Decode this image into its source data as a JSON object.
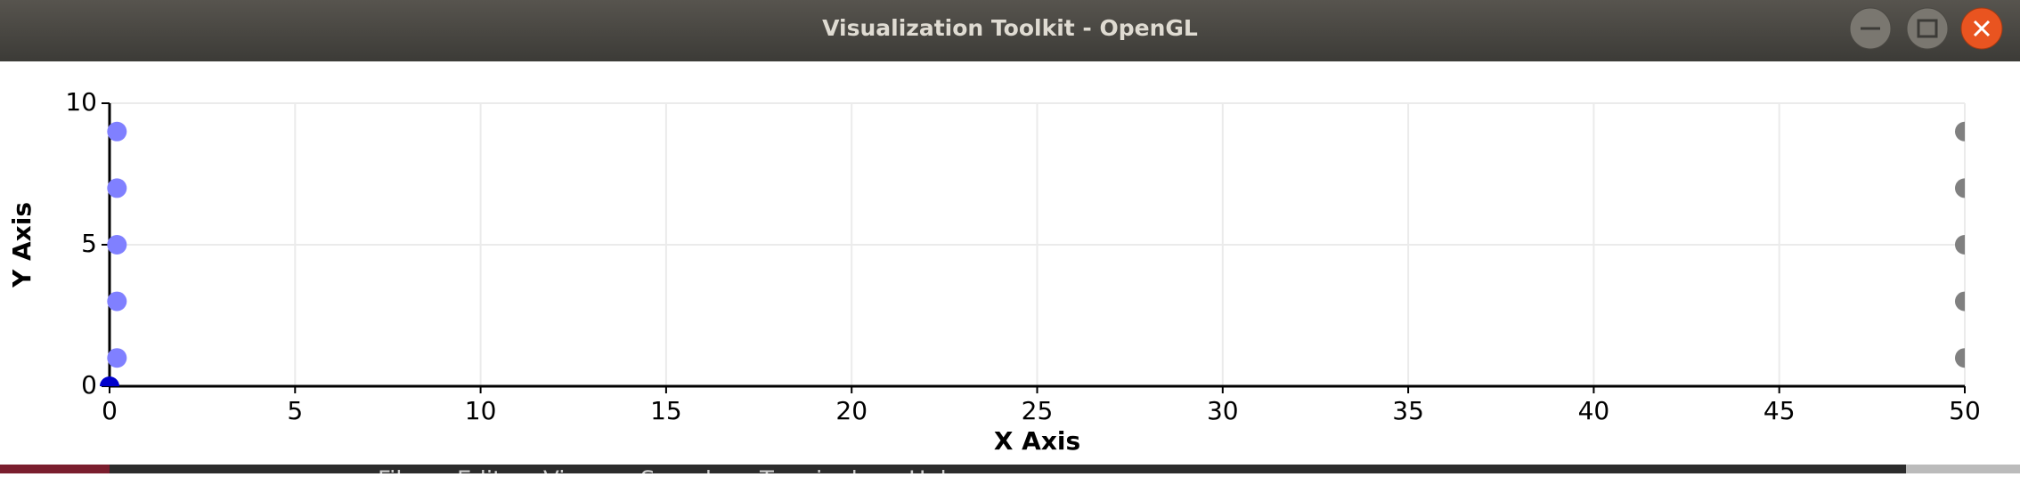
{
  "window": {
    "title": "Visualization Toolkit - OpenGL"
  },
  "chart_data": {
    "type": "scatter",
    "xlabel": "X Axis",
    "ylabel": "Y Axis",
    "xlim": [
      0,
      50
    ],
    "ylim": [
      0,
      10
    ],
    "xticks": [
      0,
      5,
      10,
      15,
      20,
      25,
      30,
      35,
      40,
      45,
      50
    ],
    "yticks": [
      0,
      5,
      10
    ],
    "grid": true,
    "series": [
      {
        "color": "#8080ff",
        "x": [
          0.2,
          0.2,
          0.2,
          0.2,
          0.2
        ],
        "values": [
          1,
          3,
          5,
          7,
          9
        ]
      },
      {
        "color": "#808080",
        "x": [
          50,
          50,
          50,
          50,
          50
        ],
        "values": [
          1,
          3,
          5,
          7,
          9
        ]
      },
      {
        "color": "#0000cc",
        "x": [
          0
        ],
        "values": [
          0
        ]
      }
    ]
  },
  "terminal_menu": [
    "File",
    "Edit",
    "View",
    "Search",
    "Terminal",
    "Help"
  ]
}
